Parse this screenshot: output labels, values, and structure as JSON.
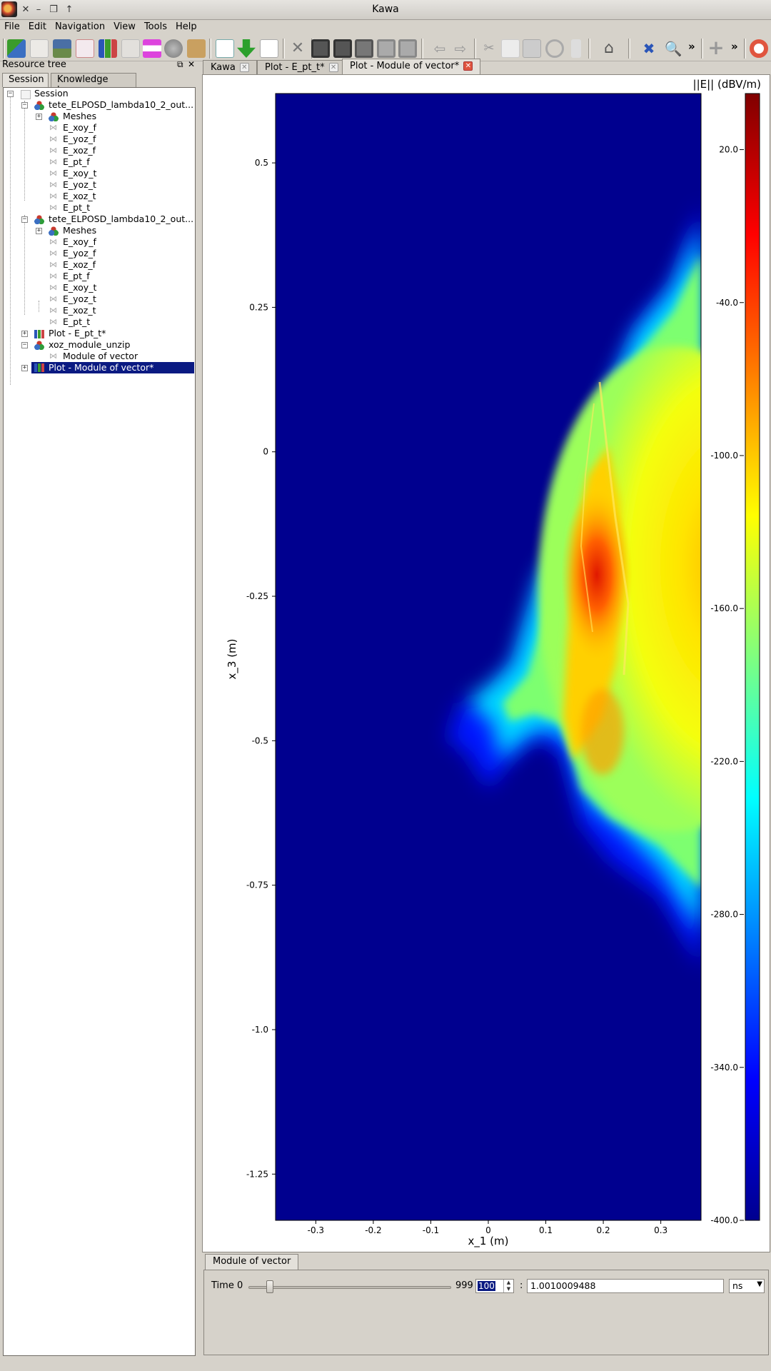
{
  "window": {
    "title": "Kawa"
  },
  "menu": [
    "File",
    "Edit",
    "Navigation",
    "View",
    "Tools",
    "Help"
  ],
  "dock": {
    "title": "Resource tree",
    "tabs": [
      "Session",
      "Knowledge base"
    ]
  },
  "tree": {
    "root": "Session",
    "dataset1": {
      "label": "tete_ELPOSD_lambda10_2_out...",
      "meshes": "Meshes",
      "fields": [
        "E_xoy_f",
        "E_yoz_f",
        "E_xoz_f",
        "E_pt_f",
        "E_xoy_t",
        "E_yoz_t",
        "E_xoz_t",
        "E_pt_t"
      ]
    },
    "dataset2": {
      "label": "tete_ELPOSD_lambda10_2_out...",
      "meshes": "Meshes",
      "fields": [
        "E_xoy_f",
        "E_yoz_f",
        "E_xoz_f",
        "E_pt_f",
        "E_xoy_t",
        "E_yoz_t",
        "E_xoz_t",
        "E_pt_t"
      ]
    },
    "plot1": "Plot - E_pt_t*",
    "xoz": {
      "label": "xoz_module_unzip",
      "child": "Module of vector"
    },
    "plot2": "Plot - Module of vector*"
  },
  "main_tabs": [
    "Kawa",
    "Plot - E_pt_t*",
    "Plot - Module of vector*"
  ],
  "chart_data": {
    "type": "heatmap",
    "xlabel": "x_1 (m)",
    "ylabel": "x_3 (m)",
    "x_ticks": [
      "-0.3",
      "-0.2",
      "-0.1",
      "0",
      "0.1",
      "0.2",
      "0.3"
    ],
    "y_ticks": [
      "0.5",
      "0.25",
      "0",
      "-0.25",
      "-0.5",
      "-0.75",
      "-1.0",
      "-1.25"
    ],
    "xlim": [
      -0.37,
      0.37
    ],
    "ylim": [
      -1.33,
      0.62
    ],
    "colorbar": {
      "label": "||E|| (dBV/m)",
      "ticks": [
        "20.0",
        "-40.0",
        "-100.0",
        "-160.0",
        "-220.0",
        "-280.0",
        "-340.0",
        "-400.0"
      ],
      "range": [
        -400,
        42
      ],
      "colormap": "jet"
    }
  },
  "bottom": {
    "tab": "Module of vector",
    "time_label": "Time",
    "slider_min": "0",
    "slider_max": "999",
    "step_value": "100",
    "separator": ":",
    "time_value": "1.0010009488",
    "unit": "ns"
  }
}
